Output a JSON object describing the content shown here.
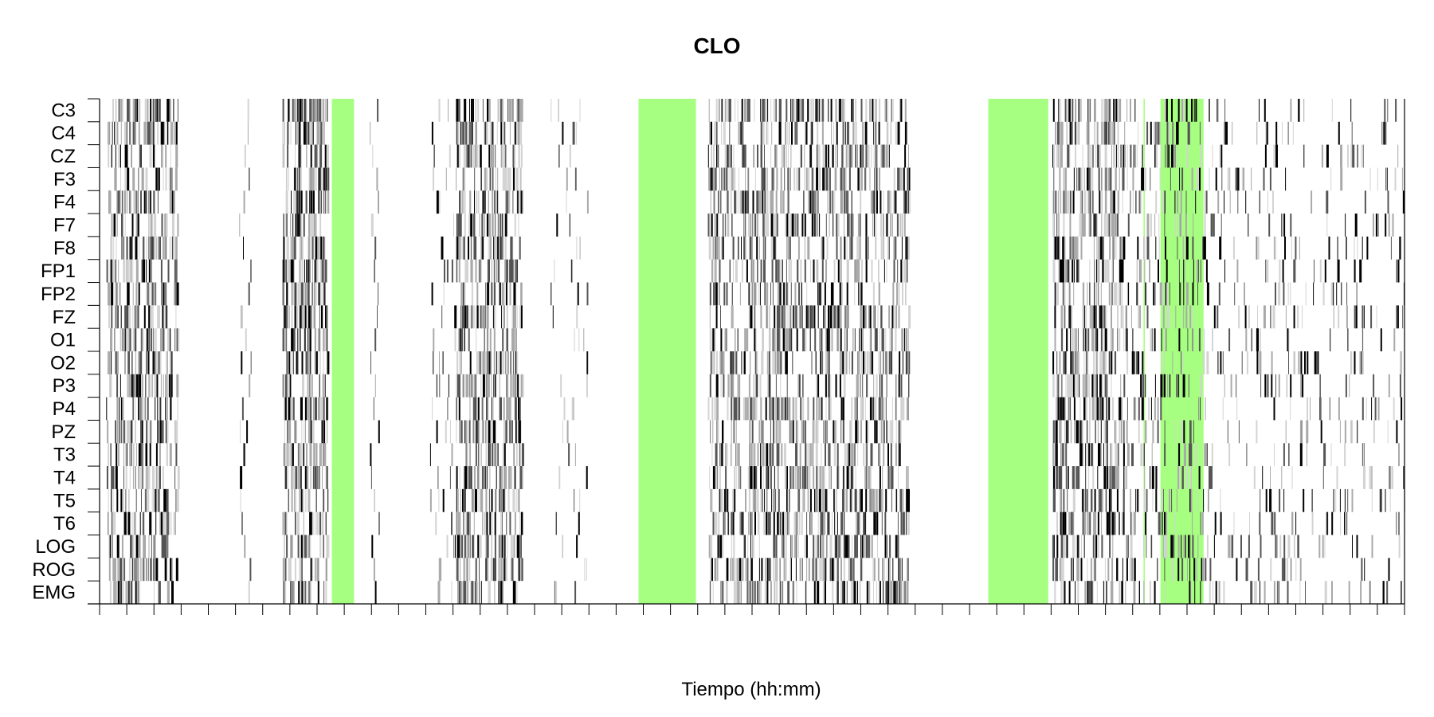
{
  "chart_data": {
    "type": "raster",
    "title": "CLO",
    "xlabel": "Tiempo (hh:mm)",
    "ylabel": "",
    "channels": [
      "C3",
      "C4",
      "CZ",
      "F3",
      "F4",
      "F7",
      "F8",
      "FP1",
      "FP2",
      "FZ",
      "O1",
      "O2",
      "P3",
      "P4",
      "PZ",
      "T3",
      "T4",
      "T5",
      "T6",
      "LOG",
      "ROG",
      "EMG"
    ],
    "x_range": [
      0,
      1
    ],
    "x_tick_count": 48,
    "highlight_color": "#a6ff80",
    "highlight_intervals": [
      [
        0.178,
        0.195
      ],
      [
        0.413,
        0.457
      ],
      [
        0.681,
        0.727
      ],
      [
        0.8,
        0.801
      ],
      [
        0.813,
        0.846
      ]
    ],
    "activity_clusters": [
      [
        0.005,
        0.06,
        0.45
      ],
      [
        0.107,
        0.116,
        0.1
      ],
      [
        0.14,
        0.175,
        0.55
      ],
      [
        0.207,
        0.214,
        0.1
      ],
      [
        0.253,
        0.275,
        0.08
      ],
      [
        0.273,
        0.324,
        0.45
      ],
      [
        0.345,
        0.374,
        0.06
      ],
      [
        0.466,
        0.62,
        0.35
      ],
      [
        0.73,
        0.785,
        0.4
      ],
      [
        0.785,
        0.846,
        0.2
      ],
      [
        0.846,
        1.0,
        0.1
      ]
    ],
    "event_colors": [
      "#000000",
      "#555555",
      "#a9a9a9",
      "#d3d3d3"
    ]
  }
}
